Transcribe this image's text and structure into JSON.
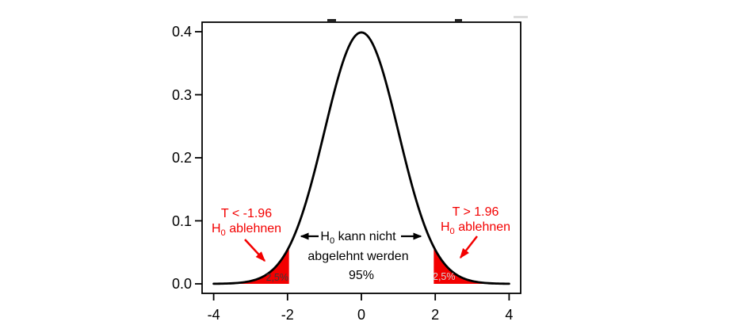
{
  "figure": {
    "background": "#ffffff",
    "description": "Standard normal density with two-sided rejection regions at the 5% significance level"
  },
  "colors": {
    "red": "#f30000",
    "curve": "#000000",
    "axis": "#000000",
    "left_pct_text": "#3b3b3b",
    "right_pct_text": "#d5d5d5"
  },
  "chart_data": {
    "type": "area",
    "title": "",
    "xlabel": "",
    "ylabel": "",
    "x_ticks": [
      -4,
      -2,
      0,
      2,
      4
    ],
    "x_tick_labels": [
      "-4",
      "-2",
      "0",
      "2",
      "4"
    ],
    "y_ticks": [
      0,
      0.1,
      0.2,
      0.3,
      0.4
    ],
    "y_tick_labels": [
      "0.0",
      "0.1",
      "0.2",
      "0.3",
      "0.4"
    ],
    "xlim": [
      -4.3,
      4.3
    ],
    "ylim": [
      0,
      0.415
    ],
    "grid": false,
    "curve_domain": [
      -4,
      4
    ],
    "distribution": {
      "name": "standard normal pdf",
      "mean": 0,
      "sd": 1
    },
    "critical_values": [
      -1.96,
      1.96
    ],
    "rejection_regions": [
      {
        "range": [
          -4,
          -1.96
        ],
        "probability_label": "2,5%"
      },
      {
        "range": [
          1.96,
          4
        ],
        "probability_label": "2,5%"
      }
    ],
    "acceptance_region": {
      "range": [
        -1.96,
        1.96
      ],
      "probability_label": "95%"
    },
    "curve_points": {
      "x": [
        -4,
        -3.5,
        -3,
        -2.5,
        -2,
        -1.5,
        -1,
        -0.5,
        0,
        0.5,
        1,
        1.5,
        2,
        2.5,
        3,
        3.5,
        4
      ],
      "y": [
        0.0001,
        0.0009,
        0.0044,
        0.0175,
        0.054,
        0.1295,
        0.242,
        0.3521,
        0.3989,
        0.3521,
        0.242,
        0.1295,
        0.054,
        0.0175,
        0.0044,
        0.0009,
        0.0001
      ]
    }
  },
  "annotations": {
    "left_tail": {
      "line1": "T < -1.96",
      "line2_h": "H",
      "line2_sub": "0",
      "line2_rest": " ablehnen"
    },
    "right_tail": {
      "line1": "T > 1.96",
      "line2_h": "H",
      "line2_sub": "0",
      "line2_rest": " ablehnen"
    },
    "center": {
      "line1_h": "H",
      "line1_sub": "0",
      "line1_rest": " kann nicht",
      "line2": "abgelehnt werden"
    },
    "center_probability": "95%",
    "left_tail_probability": "2,5%",
    "right_tail_probability": "2,5%"
  }
}
